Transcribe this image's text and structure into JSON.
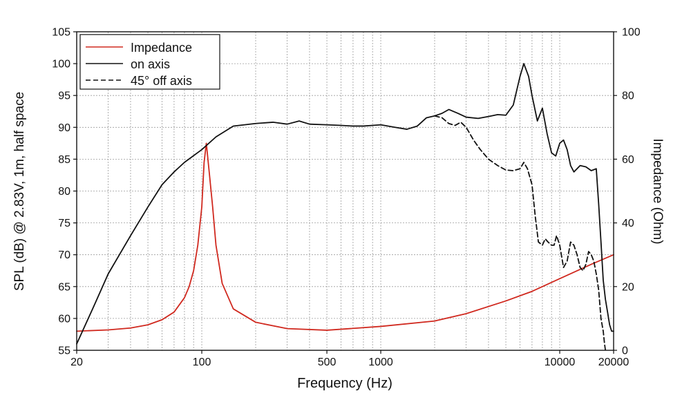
{
  "colors": {
    "impedance": "#d0281e",
    "on_axis": "#111111",
    "off_axis": "#111111",
    "grid": "#9a9a9a",
    "axes": "#111111"
  },
  "chart_data": {
    "type": "line",
    "xlabel": "Frequency (Hz)",
    "ylabel_left": "SPL (dB) @ 2.83V, 1m, half space",
    "ylabel_right": "Impedance (Ohm)",
    "x_scale": "log",
    "xlim": [
      20,
      20000
    ],
    "ylim_left": [
      55,
      105
    ],
    "ylim_right": [
      0,
      100
    ],
    "x_ticks": [
      20,
      100,
      500,
      1000,
      10000,
      20000
    ],
    "x_tick_labels": [
      "20",
      "100",
      "500",
      "1000",
      "10000",
      "20000"
    ],
    "y_ticks_left": [
      55,
      60,
      65,
      70,
      75,
      80,
      85,
      90,
      95,
      100,
      105
    ],
    "y_tick_labels_left": [
      "55",
      "60",
      "65",
      "70",
      "75",
      "80",
      "85",
      "90",
      "95",
      "100",
      "105"
    ],
    "y_ticks_right": [
      0,
      20,
      40,
      60,
      80,
      100
    ],
    "y_tick_labels_right": [
      "0",
      "20",
      "40",
      "60",
      "80",
      "100"
    ],
    "grid": true,
    "legend_position": "top-left",
    "series": [
      {
        "name": "Impedance",
        "axis": "right",
        "style": "solid",
        "color": "#d0281e",
        "x": [
          20,
          30,
          40,
          50,
          60,
          70,
          80,
          85,
          90,
          95,
          100,
          103,
          106,
          110,
          115,
          120,
          130,
          150,
          200,
          300,
          500,
          1000,
          2000,
          3000,
          5000,
          7000,
          10000,
          15000,
          20000
        ],
        "y": [
          6,
          6.4,
          7,
          8,
          9.6,
          12,
          16.5,
          20,
          25,
          33,
          45,
          59,
          65,
          56,
          45,
          33,
          21,
          13,
          8.8,
          6.8,
          6.3,
          7.5,
          9.2,
          11.5,
          15.5,
          18.5,
          22.5,
          27,
          30
        ]
      },
      {
        "name": "on axis",
        "axis": "left",
        "style": "solid",
        "color": "#111111",
        "x": [
          20,
          25,
          30,
          40,
          50,
          60,
          70,
          80,
          100,
          120,
          150,
          200,
          250,
          300,
          350,
          400,
          500,
          600,
          700,
          800,
          900,
          1000,
          1200,
          1400,
          1600,
          1800,
          2000,
          2200,
          2400,
          2700,
          3000,
          3500,
          4000,
          4500,
          5000,
          5500,
          6000,
          6300,
          6700,
          7000,
          7500,
          8000,
          8500,
          9000,
          9500,
          10000,
          10500,
          11000,
          11500,
          12000,
          13000,
          14000,
          15000,
          16000,
          16500,
          17000,
          17500,
          18000,
          18500,
          19000,
          19500,
          20000
        ],
        "y": [
          56,
          62,
          67,
          73,
          77.5,
          81,
          83,
          84.5,
          86.5,
          88.5,
          90.2,
          90.6,
          90.8,
          90.5,
          91,
          90.5,
          90.4,
          90.3,
          90.2,
          90.2,
          90.3,
          90.4,
          90,
          89.7,
          90.2,
          91.5,
          91.8,
          92.2,
          92.8,
          92.2,
          91.6,
          91.4,
          91.7,
          92,
          91.9,
          93.5,
          98,
          100,
          98,
          95,
          91,
          93,
          89,
          86,
          85.5,
          87.5,
          88,
          86.5,
          84,
          83,
          84,
          83.8,
          83.2,
          83.5,
          78,
          72,
          66,
          63,
          61,
          59,
          58,
          58
        ]
      },
      {
        "name": "45° off axis",
        "axis": "left",
        "style": "dashed",
        "color": "#111111",
        "x": [
          2000,
          2200,
          2400,
          2600,
          2800,
          3000,
          3300,
          3600,
          4000,
          4500,
          5000,
          5500,
          6000,
          6300,
          6600,
          7000,
          7300,
          7600,
          8000,
          8300,
          8600,
          9000,
          9300,
          9600,
          10000,
          10500,
          11000,
          11500,
          12000,
          12500,
          13000,
          13500,
          14000,
          14500,
          15000,
          15500,
          16000,
          16500,
          17000,
          17500,
          17800,
          18000,
          18200
        ],
        "y": [
          91.8,
          91.5,
          90.6,
          90.3,
          90.8,
          90,
          88,
          86.5,
          85,
          84,
          83.3,
          83.2,
          83.5,
          84.5,
          83.5,
          81,
          76,
          72,
          71.5,
          72.5,
          72,
          71.5,
          71.5,
          73,
          71.5,
          68,
          69,
          72,
          71.5,
          70,
          68,
          67.5,
          68.5,
          70.5,
          70,
          69,
          67,
          64.5,
          60,
          58,
          56,
          55,
          55
        ]
      }
    ]
  }
}
